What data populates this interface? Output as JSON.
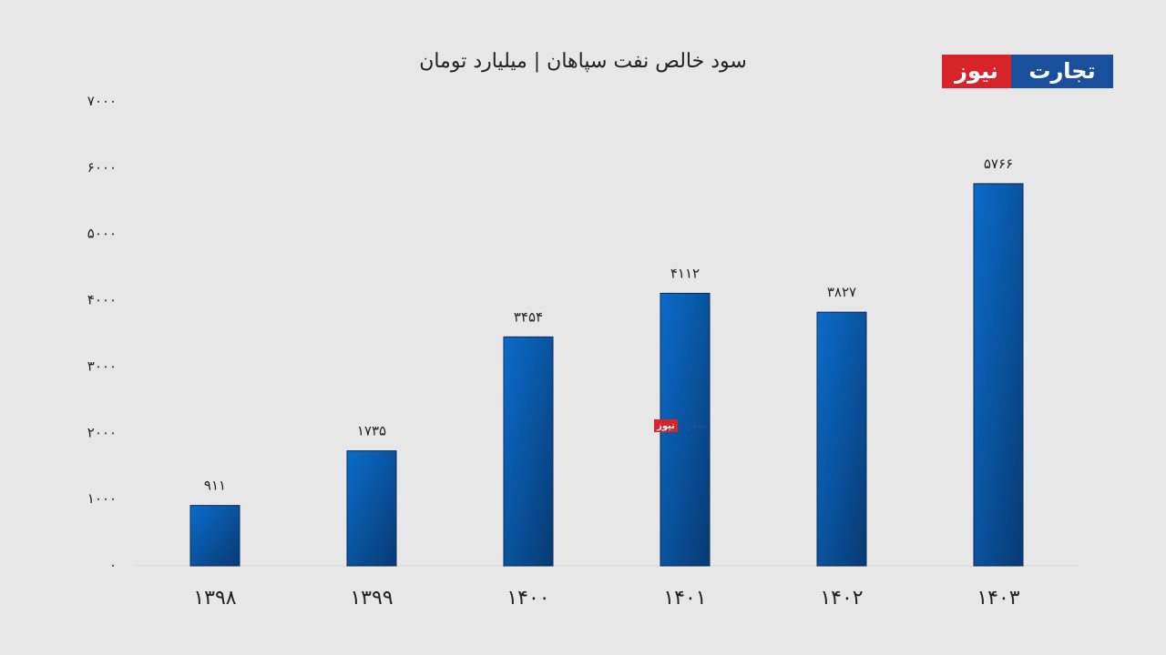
{
  "chart_data": {
    "type": "bar",
    "title": "سود خالص نفت سپاهان | میلیارد تومان",
    "logo": [
      "تجارت",
      "نیوز"
    ],
    "categories": [
      "۱۳۹۸",
      "۱۳۹۹",
      "۱۴۰۰",
      "۱۴۰۱",
      "۱۴۰۲",
      "۱۴۰۳"
    ],
    "values": [
      911,
      1735,
      3454,
      4112,
      3827,
      5766
    ],
    "value_labels": [
      "۹۱۱",
      "۱۷۳۵",
      "۳۴۵۴",
      "۴۱۱۲",
      "۳۸۲۷",
      "۵۷۶۶"
    ],
    "color": "#0a6ccb",
    "ylim": [
      0,
      7000
    ],
    "yticks": [
      {
        "value": 0,
        "label": "۰"
      },
      {
        "value": 1000,
        "label": "۱۰۰۰"
      },
      {
        "value": 2000,
        "label": "۲۰۰۰"
      },
      {
        "value": 3000,
        "label": "۳۰۰۰"
      },
      {
        "value": 4000,
        "label": "۴۰۰۰"
      },
      {
        "value": 5000,
        "label": "۵۰۰۰"
      },
      {
        "value": 6000,
        "label": "۶۰۰۰"
      },
      {
        "value": 7000,
        "label": "۷۰۰۰"
      }
    ],
    "grid": false
  }
}
